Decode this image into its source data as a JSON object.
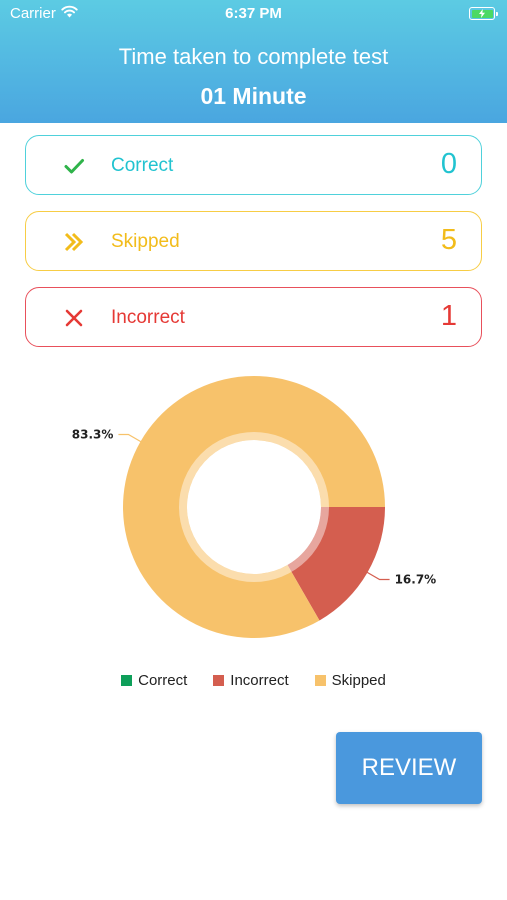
{
  "status_bar": {
    "carrier": "Carrier",
    "time": "6:37 PM"
  },
  "header": {
    "title": "Time taken to complete test",
    "time_value": "01 Minute"
  },
  "stats": [
    {
      "label": "Correct",
      "value": "0",
      "icon": "check-icon",
      "color": "#21c3d0",
      "icon_color": "#2fb34a"
    },
    {
      "label": "Skipped",
      "value": "5",
      "icon": "double-chevron-right-icon",
      "color": "#f2bc1b"
    },
    {
      "label": "Incorrect",
      "value": "1",
      "icon": "close-icon",
      "color": "#e53935"
    }
  ],
  "chart_data": {
    "type": "pie",
    "donut": true,
    "categories": [
      "Correct",
      "Incorrect",
      "Skipped"
    ],
    "values": [
      0,
      1,
      5
    ],
    "percent_labels": [
      "",
      "16.7%",
      "83.3%"
    ],
    "colors": [
      "#0e9f5a",
      "#d45e4f",
      "#f7c26b"
    ],
    "legend_position": "bottom"
  },
  "review_button": {
    "label": "REVIEW"
  }
}
